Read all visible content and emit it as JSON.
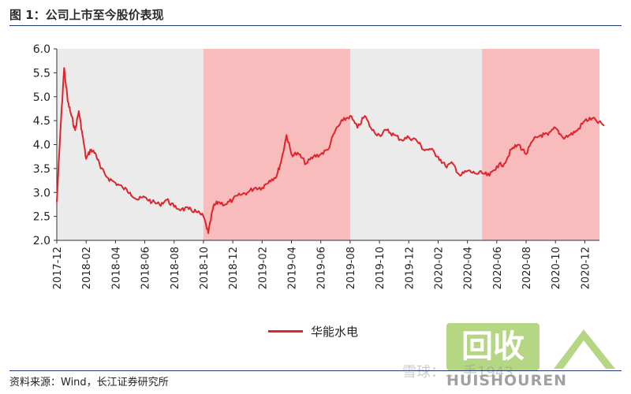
{
  "figure": {
    "title": "图 1：公司上市至今股价表现",
    "source": "资料来源：Wind，长江证券研究所"
  },
  "watermark": {
    "logo_text": "HUISHOUREN",
    "logo_mark": "回收",
    "overlay_text": "雪球：... 手1943"
  },
  "chart_data": {
    "type": "line",
    "title": "",
    "xlabel": "",
    "ylabel": "",
    "ylim": [
      2.0,
      6.0
    ],
    "yticks": [
      "2.0",
      "2.5",
      "3.0",
      "3.5",
      "4.0",
      "4.5",
      "5.0",
      "5.5",
      "6.0"
    ],
    "xticks": [
      "2017-12",
      "2018-02",
      "2018-04",
      "2018-06",
      "2018-08",
      "2018-10",
      "2018-12",
      "2019-02",
      "2019-04",
      "2019-06",
      "2019-08",
      "2019-10",
      "2019-12",
      "2020-02",
      "2020-04",
      "2020-06",
      "2020-08",
      "2020-10",
      "2020-12"
    ],
    "legend": "bottom-center",
    "shaded_periods": [
      {
        "start": "2018-10",
        "end": "2019-08",
        "color": "#f9bcbc"
      },
      {
        "start": "2020-05",
        "end": "2021-01",
        "color": "#f9bcbc"
      }
    ],
    "background_color": "#ebebeb",
    "series": [
      {
        "name": "华能水电",
        "color": "#e0242b",
        "x": [
          "2017-12",
          "2017-12",
          "2017-12",
          "2017-12",
          "2018-01",
          "2018-01",
          "2018-01",
          "2018-01",
          "2018-02",
          "2018-02",
          "2018-02",
          "2018-03",
          "2018-03",
          "2018-04",
          "2018-04",
          "2018-05",
          "2018-05",
          "2018-06",
          "2018-06",
          "2018-07",
          "2018-07",
          "2018-08",
          "2018-08",
          "2018-09",
          "2018-09",
          "2018-10",
          "2018-10",
          "2018-10",
          "2018-11",
          "2018-11",
          "2018-12",
          "2018-12",
          "2019-01",
          "2019-01",
          "2019-02",
          "2019-02",
          "2019-03",
          "2019-03",
          "2019-03",
          "2019-04",
          "2019-04",
          "2019-05",
          "2019-05",
          "2019-06",
          "2019-06",
          "2019-07",
          "2019-07",
          "2019-08",
          "2019-08",
          "2019-09",
          "2019-09",
          "2019-10",
          "2019-10",
          "2019-11",
          "2019-11",
          "2019-12",
          "2019-12",
          "2020-01",
          "2020-01",
          "2020-02",
          "2020-02",
          "2020-03",
          "2020-03",
          "2020-04",
          "2020-04",
          "2020-05",
          "2020-05",
          "2020-06",
          "2020-06",
          "2020-07",
          "2020-07",
          "2020-08",
          "2020-08",
          "2020-09",
          "2020-09",
          "2020-10",
          "2020-10",
          "2020-11",
          "2020-11",
          "2020-12",
          "2020-12",
          "2021-01"
        ],
        "values": [
          2.8,
          4.3,
          5.6,
          4.9,
          4.6,
          4.3,
          4.7,
          4.2,
          3.7,
          3.9,
          3.8,
          3.5,
          3.3,
          3.2,
          3.1,
          3.0,
          2.85,
          2.9,
          2.8,
          2.75,
          2.85,
          2.7,
          2.65,
          2.65,
          2.6,
          2.5,
          2.15,
          2.7,
          2.8,
          2.75,
          2.85,
          2.95,
          3.0,
          3.1,
          3.1,
          3.25,
          3.35,
          3.7,
          4.2,
          3.8,
          3.8,
          3.6,
          3.75,
          3.8,
          3.9,
          4.3,
          4.5,
          4.6,
          4.35,
          4.6,
          4.3,
          4.2,
          4.3,
          4.2,
          4.1,
          4.15,
          4.1,
          3.9,
          3.9,
          3.75,
          3.55,
          3.6,
          3.35,
          3.45,
          3.4,
          3.4,
          3.35,
          3.55,
          3.6,
          3.9,
          4.0,
          3.8,
          4.1,
          4.2,
          4.2,
          4.35,
          4.15,
          4.2,
          4.3,
          4.5,
          4.55,
          4.4
        ]
      }
    ]
  }
}
